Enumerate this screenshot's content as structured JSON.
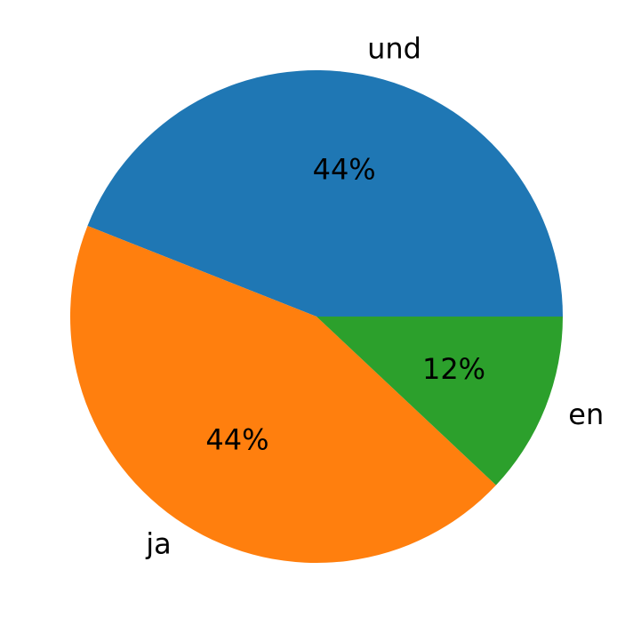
{
  "chart_data": {
    "type": "pie",
    "categories": [
      "und",
      "ja",
      "en"
    ],
    "values": [
      44,
      44,
      12
    ],
    "value_labels": [
      "44%",
      "44%",
      "12%"
    ],
    "colors": [
      "#1f77b4",
      "#ff7f0e",
      "#2ca02c"
    ]
  }
}
